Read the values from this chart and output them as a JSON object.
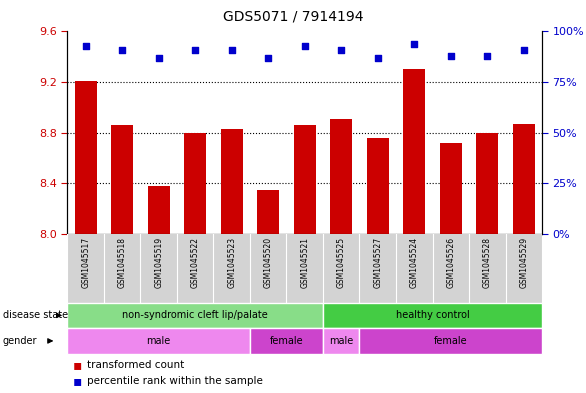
{
  "title": "GDS5071 / 7914194",
  "samples": [
    "GSM1045517",
    "GSM1045518",
    "GSM1045519",
    "GSM1045522",
    "GSM1045523",
    "GSM1045520",
    "GSM1045521",
    "GSM1045525",
    "GSM1045527",
    "GSM1045524",
    "GSM1045526",
    "GSM1045528",
    "GSM1045529"
  ],
  "transformed_count": [
    9.21,
    8.86,
    8.38,
    8.8,
    8.83,
    8.35,
    8.86,
    8.91,
    8.76,
    9.3,
    8.72,
    8.8,
    8.87
  ],
  "percentile_rank": [
    93,
    91,
    87,
    91,
    91,
    87,
    93,
    91,
    87,
    94,
    88,
    88,
    91
  ],
  "ylim_left": [
    8.0,
    9.6
  ],
  "ylim_right": [
    0,
    100
  ],
  "yticks_left": [
    8.0,
    8.4,
    8.8,
    9.2,
    9.6
  ],
  "yticks_right": [
    0,
    25,
    50,
    75,
    100
  ],
  "bar_color": "#cc0000",
  "dot_color": "#0000cc",
  "disease_state_groups": [
    {
      "label": "non-syndromic cleft lip/palate",
      "start": 0,
      "end": 7,
      "color": "#88dd88"
    },
    {
      "label": "healthy control",
      "start": 7,
      "end": 13,
      "color": "#44cc44"
    }
  ],
  "gender_groups": [
    {
      "label": "male",
      "start": 0,
      "end": 5,
      "color": "#ee88ee"
    },
    {
      "label": "female",
      "start": 5,
      "end": 7,
      "color": "#cc44cc"
    },
    {
      "label": "male",
      "start": 7,
      "end": 8,
      "color": "#ee88ee"
    },
    {
      "label": "female",
      "start": 8,
      "end": 13,
      "color": "#cc44cc"
    }
  ],
  "left_axis_color": "#cc0000",
  "right_axis_color": "#0000cc",
  "sample_label_bg": "#d3d3d3",
  "grid_yticks": [
    8.4,
    8.8,
    9.2
  ]
}
